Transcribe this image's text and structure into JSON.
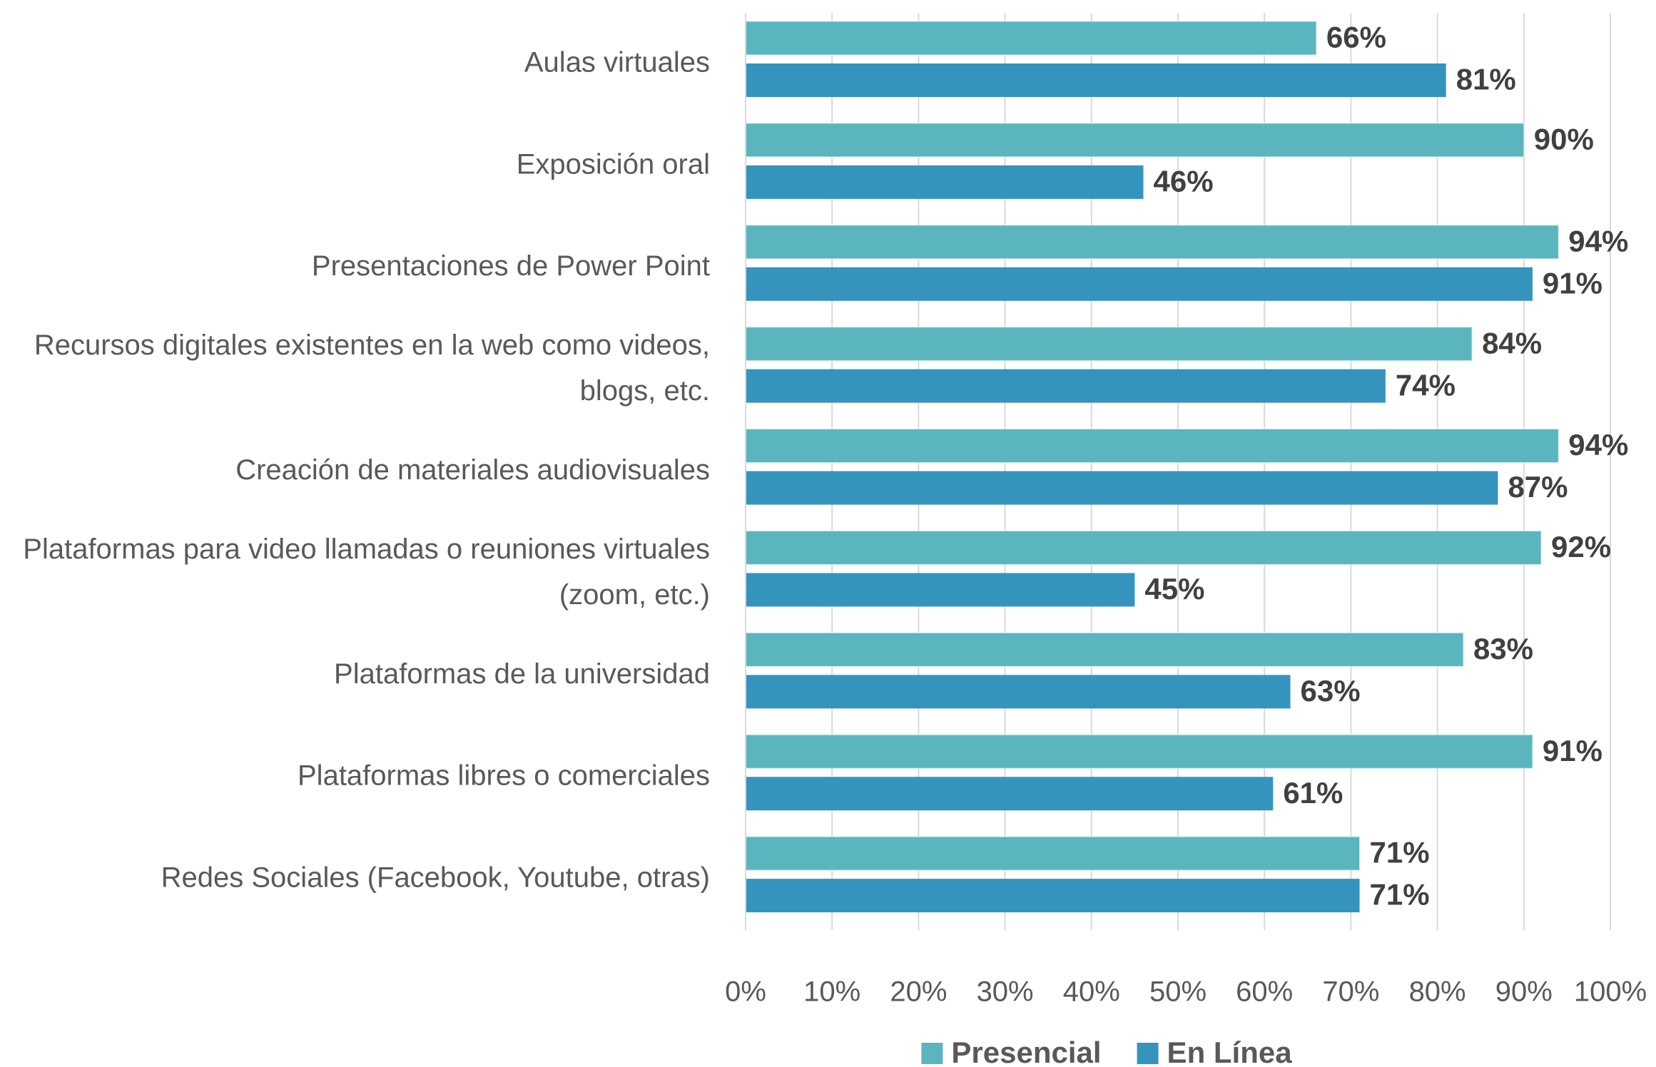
{
  "chart_data": {
    "type": "bar",
    "orientation": "horizontal",
    "categories": [
      "Aulas virtuales",
      "Exposición oral",
      "Presentaciones de Power Point",
      "Recursos digitales existentes en la web como videos, blogs, etc.",
      "Creación de materiales audiovisuales",
      "Plataformas para video llamadas o reuniones virtuales (zoom, etc.)",
      "Plataformas de la universidad",
      "Plataformas libres o comerciales",
      "Redes Sociales (Facebook, Youtube, otras)"
    ],
    "series": [
      {
        "name": "Presencial",
        "color": "#5ab5bf",
        "values": [
          66,
          90,
          94,
          84,
          94,
          92,
          83,
          91,
          71
        ],
        "value_labels": [
          "66%",
          "90%",
          "94%",
          "84%",
          "94%",
          "92%",
          "83%",
          "91%",
          "71%"
        ]
      },
      {
        "name": "En Línea",
        "color": "#3494bd",
        "values": [
          81,
          46,
          91,
          74,
          87,
          45,
          63,
          61,
          71
        ],
        "value_labels": [
          "81%",
          "46%",
          "91%",
          "74%",
          "87%",
          "45%",
          "63%",
          "61%",
          "71%"
        ]
      }
    ],
    "xlim": [
      0,
      100
    ],
    "xticks": [
      {
        "value": 0,
        "label": "0%"
      },
      {
        "value": 10,
        "label": "10%"
      },
      {
        "value": 20,
        "label": "20%"
      },
      {
        "value": 30,
        "label": "30%"
      },
      {
        "value": 40,
        "label": "40%"
      },
      {
        "value": 50,
        "label": "50%"
      },
      {
        "value": 60,
        "label": "60%"
      },
      {
        "value": 70,
        "label": "70%"
      },
      {
        "value": 80,
        "label": "80%"
      },
      {
        "value": 90,
        "label": "90%"
      },
      {
        "value": 100,
        "label": "100%"
      }
    ],
    "grid": true,
    "legend": "bottom"
  }
}
